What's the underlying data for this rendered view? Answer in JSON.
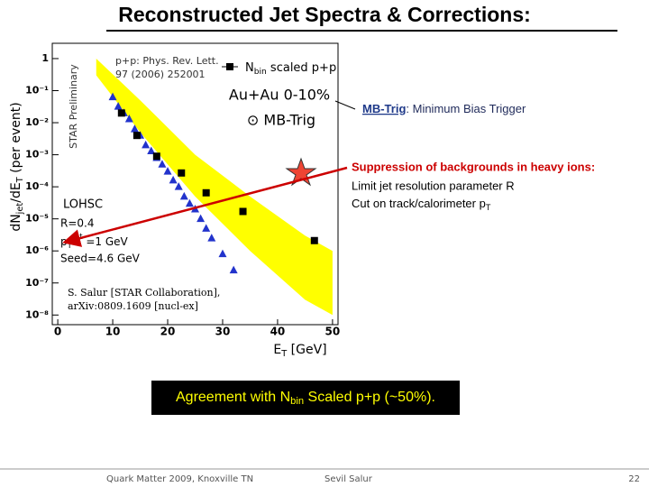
{
  "title": "Reconstructed Jet Spectra & Corrections:",
  "chart_data": {
    "type": "scatter",
    "ylog": true,
    "y_label": {
      "main": "dN",
      "sub1": "jet",
      "mid": "/dE",
      "sub2": "T",
      "after": " (per event)"
    },
    "x_label": {
      "main": "E",
      "sub": "T",
      "after": " [GeV]"
    },
    "xlim": [
      -1,
      51
    ],
    "xticks": [
      0,
      10,
      20,
      30,
      40,
      50
    ],
    "ylim": [
      5e-09,
      3
    ],
    "yticks": [
      {
        "value": 1,
        "label": "1"
      },
      {
        "value": 0.1,
        "label": "10⁻¹"
      },
      {
        "value": 0.01,
        "label": "10⁻²"
      },
      {
        "value": 0.001,
        "label": "10⁻³"
      },
      {
        "value": 0.0001,
        "label": "10⁻⁴"
      },
      {
        "value": 1e-05,
        "label": "10⁻⁵"
      },
      {
        "value": 1e-06,
        "label": "10⁻⁶"
      },
      {
        "value": 1e-07,
        "label": "10⁻⁷"
      },
      {
        "value": 1e-08,
        "label": "10⁻⁸"
      }
    ],
    "band": {
      "color": "#ffff00",
      "x": [
        7,
        15,
        25,
        35,
        45,
        50
      ],
      "upper": [
        1,
        0.05,
        0.001,
        5e-05,
        3e-06,
        1e-06
      ],
      "lower": [
        0.3,
        0.005,
        5e-05,
        1e-06,
        3e-08,
        1e-08
      ]
    },
    "series": [
      {
        "color": "#2233cc",
        "marker": "triangle",
        "x": [
          10,
          11,
          12,
          13,
          14,
          15,
          16,
          17,
          18,
          19,
          20,
          21,
          22,
          23,
          24,
          25,
          26,
          27,
          28,
          30,
          32
        ],
        "values": [
          0.063,
          0.032,
          0.02,
          0.013,
          0.0063,
          0.004,
          0.002,
          0.0013,
          0.0008,
          0.0005,
          0.0003,
          0.00016,
          0.0001,
          5e-05,
          3e-05,
          2e-05,
          1e-05,
          5e-06,
          2.5e-06,
          8e-07,
          2.5e-07
        ]
      },
      {
        "color": "#000000",
        "marker": "square",
        "x": [
          11.6,
          14.4,
          18,
          22.5,
          27,
          33.7,
          46.7
        ],
        "values": [
          0.02,
          0.004,
          0.0009,
          0.00027,
          6.5e-05,
          1.7e-05,
          2.1e-06
        ]
      }
    ],
    "legend": {
      "pp_ref": "p+p: Phys. Rev. Lett.",
      "pp_ref2": "97 (2006) 252001",
      "pp_main": "N",
      "pp_sub": "bin",
      "pp_after": " scaled p+p",
      "auau": "Au+Au 0-10%",
      "auau2": "⊙ MB-Trig"
    },
    "annotations": {
      "preliminary": "STAR Preliminary",
      "algo": "LOHSC",
      "r": "R=0.4",
      "pt_main": "p",
      "pt_sub": "T",
      "pt_sup": "cut",
      "pt_after": " =1 GeV",
      "seed": "Seed=4.6 GeV",
      "cite1": "S. Salur [STAR Collaboration],",
      "cite2": "arXiv:0809.1609 [nucl-ex]"
    }
  },
  "notes": {
    "mb_term": "MB-Trig",
    "mb_def": ": Minimum Bias Trigger",
    "supp_title": "Suppression of backgrounds in heavy ions:",
    "supp_1": "Limit jet resolution parameter R",
    "supp_2_main": "Cut on track/calorimeter p",
    "supp_2_sub": "T"
  },
  "agreement": {
    "main": "Agreement with N",
    "sub": "bin",
    "after": " Scaled p+p (~50%)."
  },
  "footer": {
    "event": "Quark Matter 2009, Knoxville TN",
    "author": "Sevil Salur",
    "page": "22"
  }
}
